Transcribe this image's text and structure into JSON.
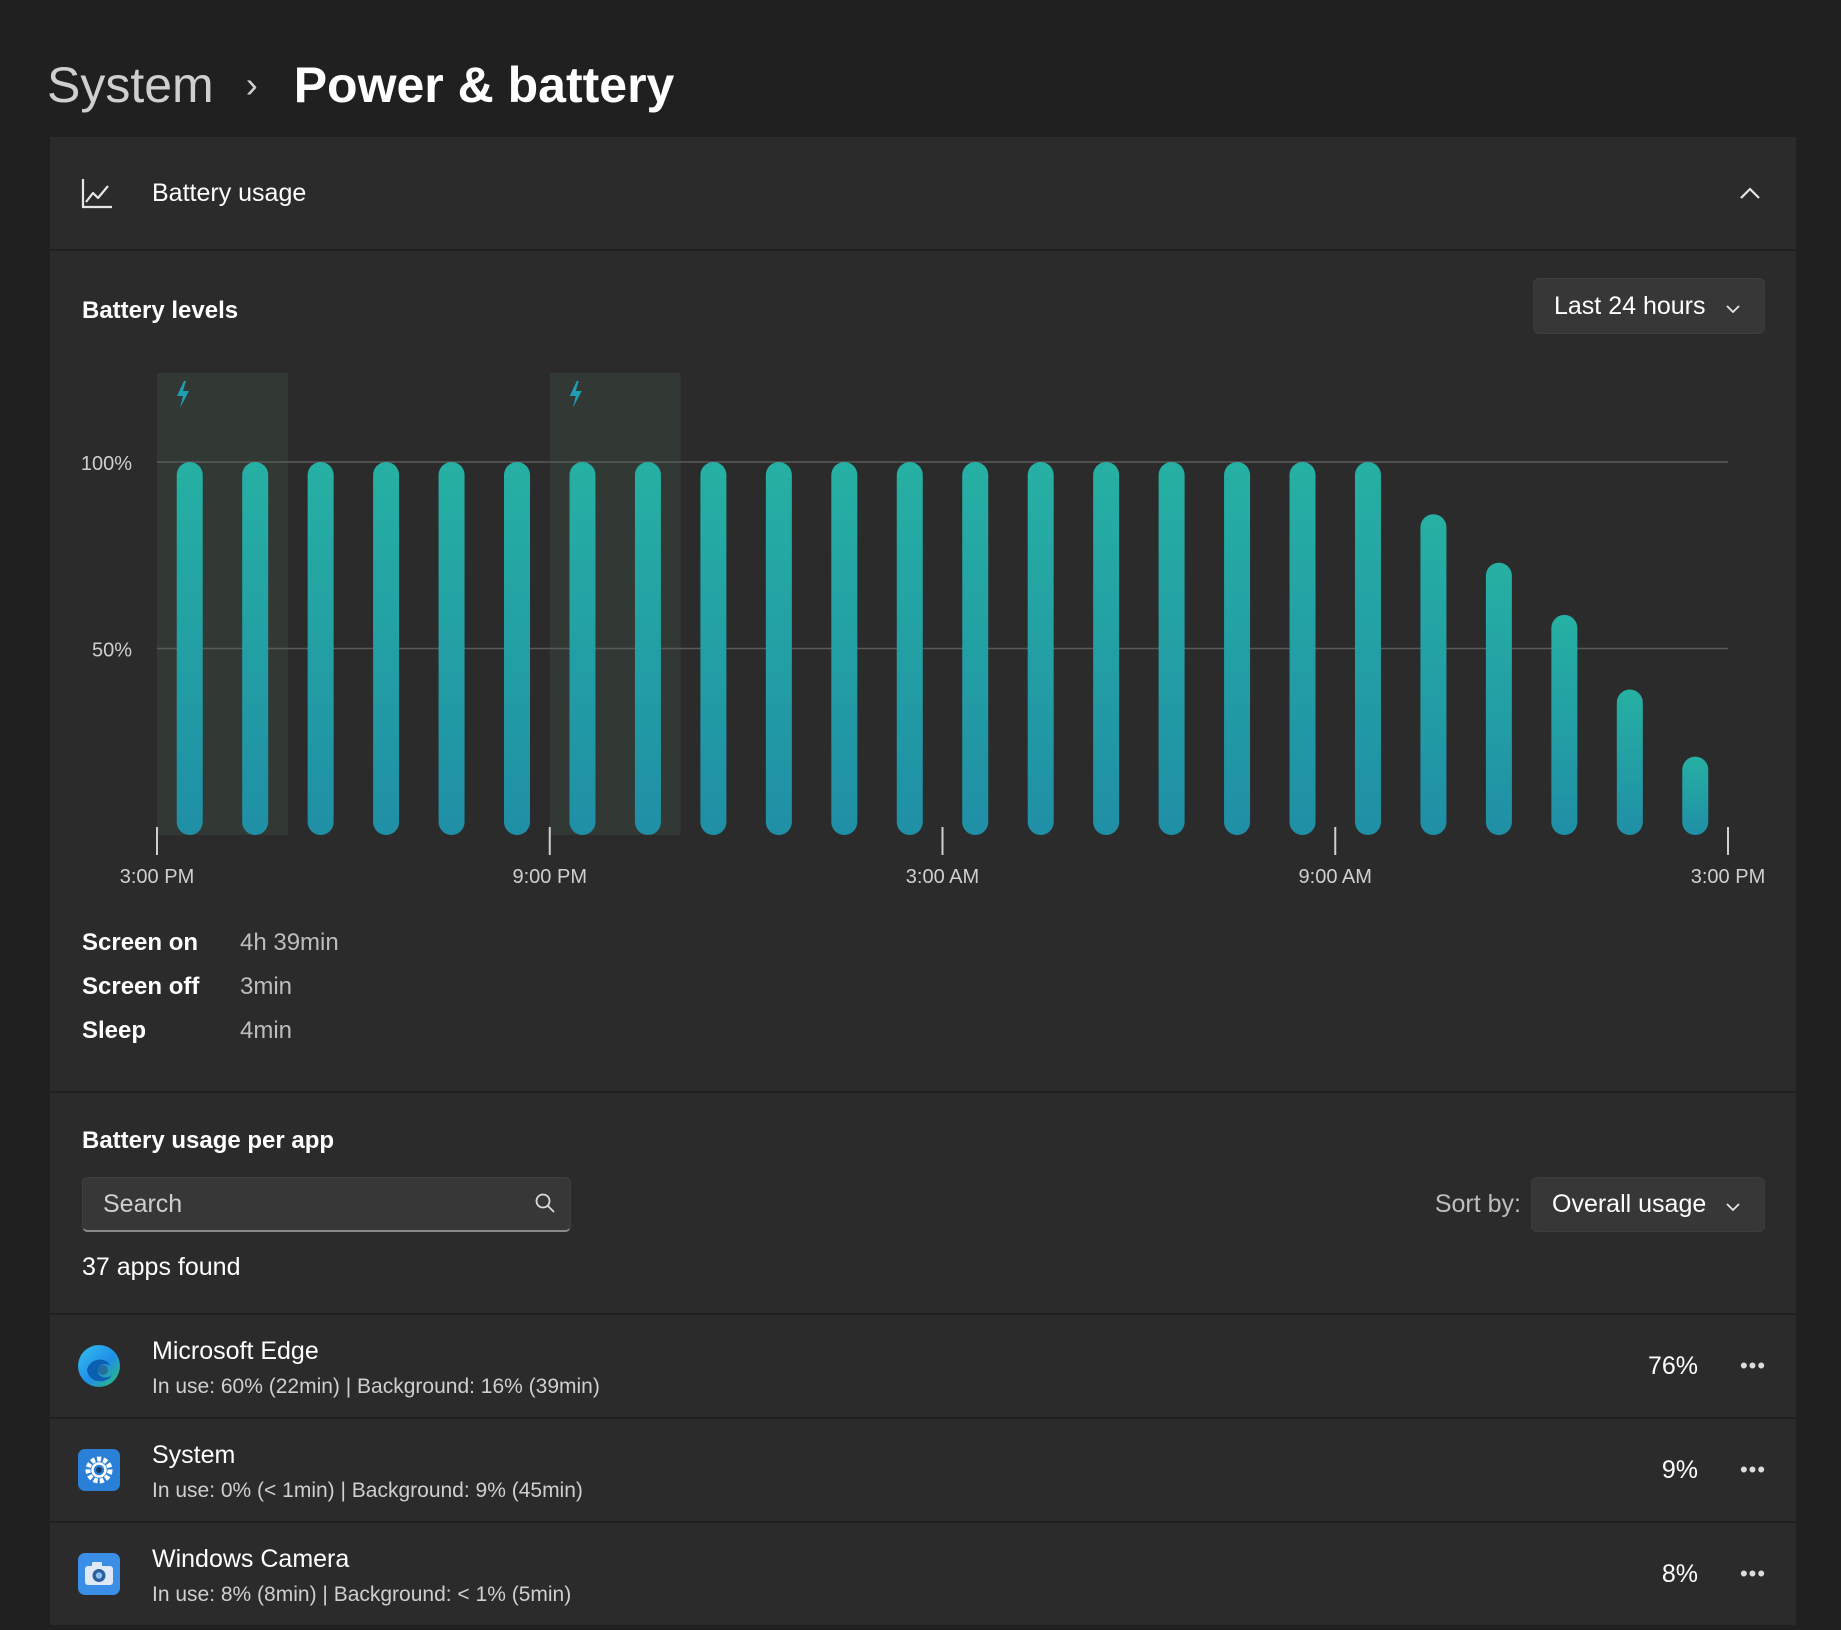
{
  "breadcrumb": {
    "parent": "System",
    "separator": "›",
    "current": "Power & battery"
  },
  "battery_usage": {
    "title": "Battery usage",
    "icon": "line-chart-icon",
    "collapse_icon": "chevron-up-icon"
  },
  "battery_levels": {
    "title": "Battery levels",
    "range_dropdown": {
      "selected": "Last 24 hours",
      "icon": "chevron-down-icon"
    },
    "stats": [
      {
        "label": "Screen on",
        "value": "4h 39min"
      },
      {
        "label": "Screen off",
        "value": "3min"
      },
      {
        "label": "Sleep",
        "value": "4min"
      }
    ]
  },
  "chart_data": {
    "type": "bar",
    "title": "Battery levels",
    "y_ticks": [
      "100%",
      "50%"
    ],
    "ylim": [
      0,
      100
    ],
    "x_ticks": [
      "3:00 PM",
      "9:00 PM",
      "3:00 AM",
      "9:00 AM",
      "3:00 PM"
    ],
    "values": [
      100,
      100,
      100,
      100,
      100,
      100,
      100,
      100,
      100,
      100,
      100,
      100,
      100,
      100,
      100,
      100,
      100,
      100,
      100,
      86,
      73,
      59,
      39,
      21
    ],
    "charging_periods": [
      [
        0,
        1
      ],
      [
        6,
        7
      ]
    ],
    "charging_icon": "lightning-bolt-icon",
    "bar_color_top": "#26b0a3",
    "bar_color_bottom": "#1f8fa6",
    "grid": true
  },
  "apps": {
    "title": "Battery usage per app",
    "search_placeholder": "Search",
    "search_icon": "search-icon",
    "sort_label": "Sort by:",
    "sort_selected": "Overall usage",
    "count_text": "37 apps found",
    "items": [
      {
        "name": "Microsoft Edge",
        "detail": "In use: 60% (22min) | Background: 16% (39min)",
        "percent": "76%",
        "icon": "microsoft-edge-icon"
      },
      {
        "name": "System",
        "detail": "In use: 0% (< 1min) | Background: 9% (45min)",
        "percent": "9%",
        "icon": "system-gear-icon"
      },
      {
        "name": "Windows Camera",
        "detail": "In use: 8% (8min) | Background: < 1% (5min)",
        "percent": "8%",
        "icon": "camera-icon"
      }
    ]
  },
  "colors": {
    "background": "#202020",
    "panel": "#2b2b2b",
    "accent": "#26b0a3"
  }
}
